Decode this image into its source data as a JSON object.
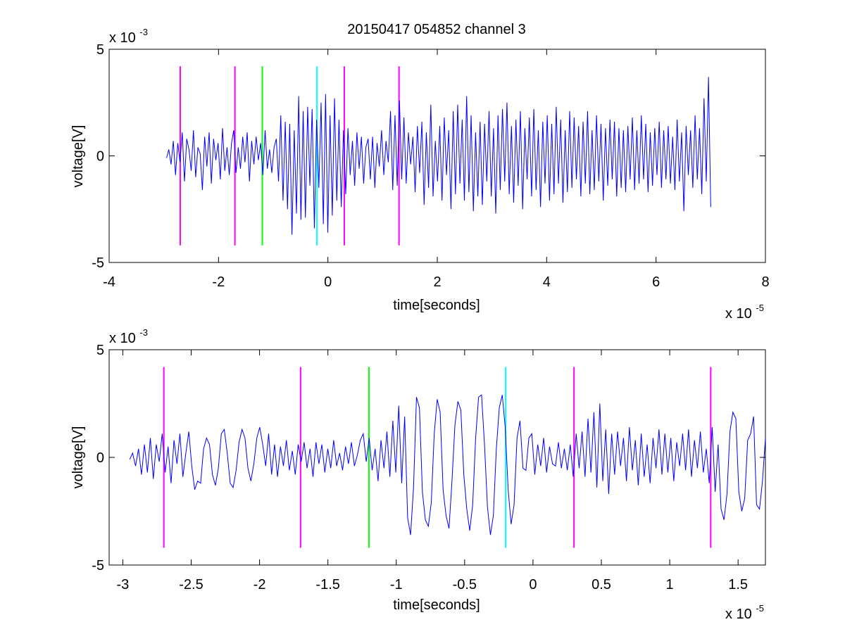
{
  "figure": {
    "title": "20150417 054852 channel 3"
  },
  "chart_data": [
    {
      "type": "line",
      "title": "20150417 054852 channel 3",
      "xlabel": "time[seconds]",
      "ylabel": "voltage[V]",
      "x_exponent_label": "x 10",
      "x_exponent": "-5",
      "y_exponent_label": "x 10",
      "y_exponent": "-3",
      "xlim": [
        -4e-05,
        8e-05
      ],
      "ylim": [
        -0.005,
        0.005
      ],
      "x_ticks": [
        -4,
        -2,
        0,
        2,
        4,
        6,
        8
      ],
      "y_ticks": [
        -5,
        0,
        5
      ],
      "grid": false,
      "signal": {
        "color": "#0000ff",
        "x_start": -2.95e-05,
        "x_end": 7e-05,
        "samples": [
          -0.0001,
          0.0003,
          -0.0004,
          0.0007,
          -0.0009,
          0.0006,
          -0.0003,
          0.0011,
          -0.0012,
          0.0008,
          0.0003,
          -0.0007,
          0.0012,
          -0.001,
          0.0004,
          0.0001,
          -0.0016,
          0.0009,
          -0.0005,
          0.0011,
          -0.0013,
          0.0008,
          -0.0002,
          0.0006,
          -0.0011,
          0.0013,
          -0.0007,
          0.0004,
          -0.0009,
          0.0006,
          0.0012,
          -0.0008,
          0.0004,
          -0.0006,
          0.0009,
          -0.0003,
          0.0011,
          -0.0012,
          0.0007,
          -0.0004,
          0.0009,
          -0.0002,
          0.0006,
          -0.0009,
          0.0012,
          -0.0006,
          0.0003,
          -0.0008,
          0.0004,
          0.0008,
          -0.0012,
          0.0019,
          -0.0021,
          0.0016,
          -0.0025,
          0.0015,
          -0.0037,
          0.0012,
          -0.0027,
          0.0028,
          -0.003,
          0.0021,
          -0.0029,
          0.0023,
          -0.0014,
          0.0022,
          -0.0034,
          0.0017,
          -0.0015,
          0.0025,
          -0.0032,
          0.0029,
          -0.0036,
          0.0019,
          -0.0028,
          0.0027,
          -0.0021,
          0.0017,
          -0.0024,
          0.0012,
          -0.0018,
          0.0013,
          -0.0009,
          0.0007,
          -0.0014,
          0.0011,
          -0.0006,
          0.0009,
          -0.0013,
          0.0004,
          0.0008,
          -0.0011,
          0.0009,
          -0.0015,
          0.0006,
          -0.0005,
          0.0012,
          -0.0009,
          0.0007,
          -0.0003,
          0.0021,
          -0.0016,
          0.0019,
          -0.0014,
          0.0026,
          -0.0011,
          0.0018,
          -0.0013,
          0.0011,
          -0.0004,
          0.0009,
          -0.0017,
          0.0014,
          -0.0008,
          0.0016,
          -0.0023,
          0.0011,
          -0.0015,
          0.0024,
          -0.0019,
          0.0007,
          -0.0012,
          0.0014,
          -0.0021,
          0.0018,
          -0.0009,
          0.0012,
          -0.0025,
          0.0021,
          -0.0018,
          0.0024,
          -0.0013,
          0.0017,
          -0.0021,
          0.0028,
          -0.0017,
          0.0019,
          -0.0026,
          0.0011,
          -0.0019,
          0.0016,
          -0.0023,
          0.0015,
          -0.0012,
          0.0021,
          -0.0019,
          0.0013,
          -0.0027,
          0.0019,
          -0.0016,
          0.0022,
          -0.0012,
          0.0025,
          -0.0018,
          0.0014,
          -0.0022,
          0.0017,
          -0.0014,
          0.0021,
          -0.0025,
          0.0013,
          -0.0011,
          0.0018,
          -0.0019,
          0.0022,
          -0.0016,
          0.0012,
          -0.0024,
          0.0016,
          -0.0013,
          0.0019,
          -0.0021,
          0.0015,
          -0.0018,
          0.0023,
          -0.0013,
          0.0017,
          -0.0022,
          0.0012,
          -0.0017,
          0.0021,
          -0.0015,
          0.0018,
          -0.0011,
          0.0014,
          -0.0019,
          0.0016,
          -0.0013,
          0.0021,
          -0.0018,
          0.0012,
          -0.0016,
          0.0019,
          -0.0012,
          0.0015,
          -0.0021,
          0.0013,
          -0.0014,
          0.0017,
          -0.0011,
          0.0016,
          -0.0019,
          0.0013,
          -0.0015,
          0.0012,
          -0.0017,
          0.0014,
          -0.0011,
          0.0018,
          -0.0016,
          0.0012,
          -0.0013,
          0.0019,
          -0.0011,
          0.0015,
          -0.0017,
          0.0011,
          -0.0014,
          0.0013,
          -0.0009,
          0.0016,
          -0.0015,
          0.0012,
          -0.0011,
          0.0014,
          -0.0013,
          0.0009,
          -0.0016,
          0.0017,
          -0.0012,
          0.0011,
          -0.0026,
          0.0014,
          -0.0009,
          0.0012,
          -0.0015,
          0.0019,
          -0.0011,
          0.0013,
          -0.0018,
          0.0027,
          -0.0012,
          0.0037,
          -0.0024
        ]
      },
      "markers": [
        {
          "x": -2.7e-05,
          "color": "#ff00ff"
        },
        {
          "x": -1.7e-05,
          "color": "#ff00ff"
        },
        {
          "x": -1.2e-05,
          "color": "#00ff00"
        },
        {
          "x": -2e-06,
          "color": "#00ffff"
        },
        {
          "x": 3e-06,
          "color": "#ff00ff"
        },
        {
          "x": 1.3e-05,
          "color": "#ff00ff"
        }
      ],
      "marker_range": [
        -0.0042,
        0.0042
      ]
    },
    {
      "type": "line",
      "title": "",
      "xlabel": "time[seconds]",
      "ylabel": "voltage[V]",
      "x_exponent_label": "x 10",
      "x_exponent": "-5",
      "y_exponent_label": "x 10",
      "y_exponent": "-3",
      "xlim": [
        -3.1e-05,
        1.7e-05
      ],
      "ylim": [
        -0.005,
        0.005
      ],
      "x_ticks": [
        -3,
        -2.5,
        -2,
        -1.5,
        -1,
        -0.5,
        0,
        0.5,
        1,
        1.5
      ],
      "y_ticks": [
        -5,
        0,
        5
      ],
      "grid": false,
      "signal": {
        "color": "#0000ff",
        "x_start": -2.95e-05,
        "x_end": 1.7e-05,
        "samples": [
          -0.0001,
          0.0002,
          -0.0004,
          0.0004,
          -0.0008,
          0.0006,
          -0.0007,
          0.0009,
          -0.001,
          0.0006,
          -0.0002,
          0.0011,
          -0.0007,
          0.0005,
          -0.0012,
          0.0008,
          -0.0003,
          0.0011,
          -0.0009,
          0.0002,
          0.0012,
          -0.0004,
          -0.0015,
          -0.0011,
          -0.0012,
          0.0004,
          0.0009,
          0.0006,
          -0.0008,
          -0.0013,
          -0.0005,
          0.0011,
          0.0013,
          0.0002,
          -0.0012,
          -0.0014,
          -0.0006,
          0.0007,
          0.0013,
          0.0009,
          -0.0005,
          -0.0011,
          -0.0003,
          0.0009,
          0.0014,
          0.0006,
          -0.0004,
          0.0011,
          -0.0008,
          0.0006,
          -0.0009,
          0.0005,
          -0.0004,
          0.0008,
          -0.0006,
          0.0003,
          -0.0008,
          0.0006,
          -0.0002,
          0.0007,
          -0.0005,
          0.0004,
          -0.0009,
          0.0007,
          -0.0003,
          0.0006,
          -0.0007,
          0.0004,
          -0.0005,
          0.0008,
          -0.0004,
          0.0002,
          -0.0006,
          0.0005,
          -0.0003,
          0.0007,
          -0.0004,
          0.0001,
          0.0008,
          0.0011,
          -0.0002,
          0.0009,
          -0.0006,
          0.0004,
          -0.0011,
          0.0008,
          -0.0005,
          0.0012,
          -0.0009,
          0.0017,
          -0.0007,
          0.0024,
          -0.0012,
          0.0019,
          -0.0028,
          -0.0036,
          -0.0014,
          0.0028,
          0.0023,
          -0.0016,
          -0.0029,
          -0.0032,
          -0.0021,
          0.0011,
          0.0027,
          0.0021,
          -0.0015,
          -0.0027,
          -0.0033,
          -0.0011,
          0.0015,
          0.0026,
          0.0022,
          -0.0008,
          -0.0024,
          -0.0034,
          -0.0022,
          0.0009,
          0.0028,
          0.0029,
          0.0006,
          -0.0023,
          -0.0036,
          -0.0027,
          0.0004,
          0.0023,
          0.0029,
          0.0014,
          -0.0015,
          -0.0031,
          -0.0022,
          0.0009,
          0.0017,
          -0.0005,
          -0.0006,
          0.0009,
          0.0011,
          -0.0008,
          0.0006,
          -0.0004,
          0.0009,
          -0.0007,
          0.0005,
          -0.0003,
          -0.0004,
          0.0007,
          -0.0005,
          0.0004,
          -0.0006,
          0.0006,
          -0.0009,
          0.0011,
          -0.0005,
          0.0012,
          -0.0009,
          0.0018,
          -0.0007,
          0.0021,
          -0.0014,
          0.0025,
          -0.0011,
          0.0013,
          -0.0017,
          0.0011,
          -0.0008,
          0.0012,
          -0.0004,
          0.0009,
          -0.0011,
          0.0014,
          -0.0006,
          0.0008,
          -0.0013,
          0.0011,
          -0.0009,
          0.0006,
          -0.0012,
          0.0009,
          -0.0005,
          0.0013,
          -0.0008,
          0.0011,
          -0.0007,
          0.0009,
          -0.0011,
          0.0007,
          -0.0004,
          0.0011,
          -0.0006,
          0.0013,
          -0.0009,
          0.0008,
          -0.0005,
          0.0012,
          -0.0007,
          0.0004,
          -0.0012,
          0.0014,
          -0.0016,
          0.0006,
          -0.0024,
          -0.0029,
          -0.0017,
          0.0012,
          0.0021,
          0.0018,
          -0.0016,
          -0.0025,
          -0.0019,
          0.0008,
          0.0011,
          0.0019,
          -0.0022,
          -0.0024,
          -0.0011,
          0.0009
        ]
      },
      "markers": [
        {
          "x": -2.7e-05,
          "color": "#ff00ff"
        },
        {
          "x": -1.7e-05,
          "color": "#ff00ff"
        },
        {
          "x": -1.2e-05,
          "color": "#00ff00"
        },
        {
          "x": -2e-06,
          "color": "#00ffff"
        },
        {
          "x": 3e-06,
          "color": "#ff00ff"
        },
        {
          "x": 1.3e-05,
          "color": "#ff00ff"
        }
      ],
      "marker_range": [
        -0.0042,
        0.0042
      ]
    }
  ]
}
